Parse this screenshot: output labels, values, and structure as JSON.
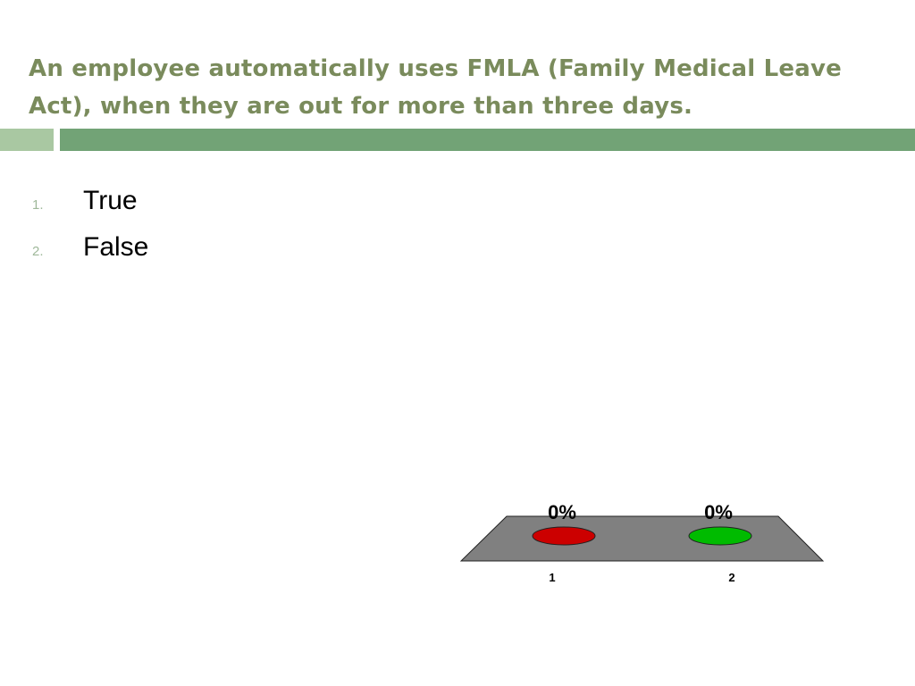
{
  "slide": {
    "title": "An employee automatically uses FMLA (Family Medical Leave Act), when they are out for more than three days."
  },
  "answers": [
    {
      "number": "1.",
      "text": "True"
    },
    {
      "number": "2.",
      "text": "False"
    }
  ],
  "colors": {
    "title": "#7a8b5c",
    "band_light": "#a9c8a2",
    "band_dark": "#72a376",
    "platform": "#808080",
    "series": [
      "#cc0000",
      "#00bb00"
    ]
  },
  "chart_data": {
    "type": "bar",
    "categories": [
      "1",
      "2"
    ],
    "values": [
      0,
      0
    ],
    "data_labels": [
      "0%",
      "0%"
    ],
    "ylim": [
      0,
      100
    ],
    "grid": false,
    "legend": "none"
  }
}
